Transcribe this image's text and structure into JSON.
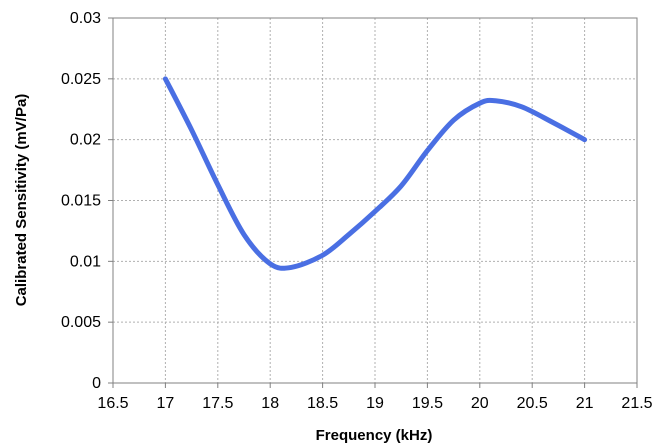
{
  "chart_data": {
    "type": "line",
    "title": "",
    "xlabel": "Frequency (kHz)",
    "ylabel": "Calibrated Sensitivity (mV/Pa)",
    "xlim": [
      16.5,
      21.5
    ],
    "ylim": [
      0,
      0.03
    ],
    "x_ticks": [
      "16.5",
      "17",
      "17.5",
      "18",
      "18.5",
      "19",
      "19.5",
      "20",
      "20.5",
      "21",
      "21.5"
    ],
    "y_ticks": [
      "0",
      "0.005",
      "0.01",
      "0.015",
      "0.02",
      "0.025",
      "0.03"
    ],
    "grid": true,
    "legend": "none",
    "series": [
      {
        "color": "#4a6fe3",
        "x": [
          17,
          17.25,
          17.5,
          17.75,
          18,
          18.2,
          18.5,
          18.75,
          19,
          19.25,
          19.5,
          19.75,
          20,
          20.15,
          20.4,
          20.7,
          21
        ],
        "y": [
          0.025,
          0.0208,
          0.0163,
          0.0122,
          0.0098,
          0.0095,
          0.0105,
          0.0122,
          0.0141,
          0.0162,
          0.0191,
          0.0216,
          0.023,
          0.0232,
          0.0227,
          0.0214,
          0.02
        ]
      }
    ]
  }
}
